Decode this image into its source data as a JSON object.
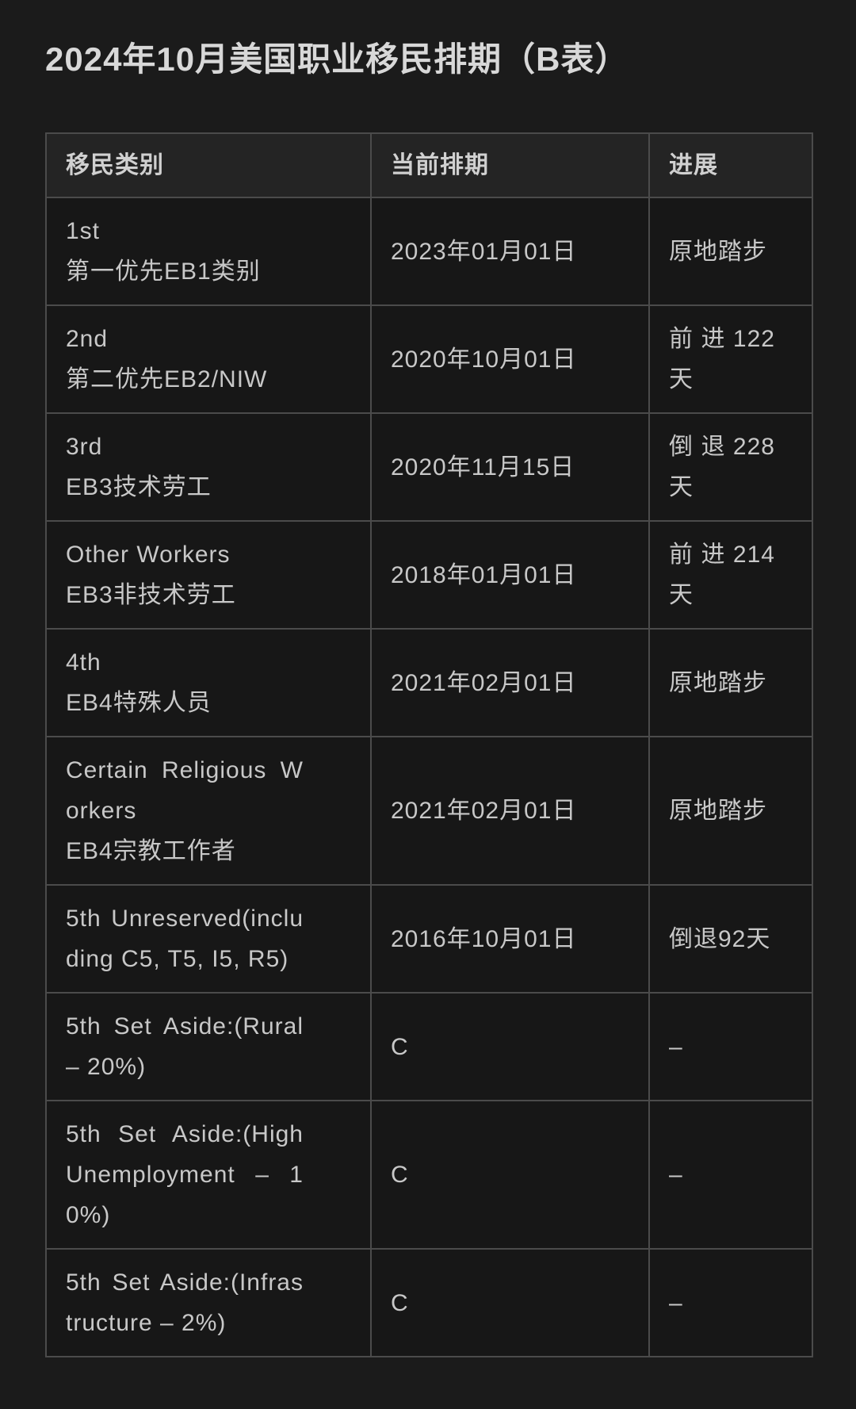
{
  "page": {
    "title": "2024年10月美国职业移民排期（B表）",
    "colors": {
      "page_background": "#1b1b1b",
      "cell_background": "#171717",
      "header_background": "#242424",
      "border": "#4b4b4b",
      "body_text": "#c8c8c8",
      "title_text": "#d8d8d8"
    }
  },
  "table": {
    "columns": [
      "移民类别",
      "当前排期",
      "进展"
    ],
    "rows": [
      {
        "category_en": "1st",
        "category_zh": "第一优先EB1类别",
        "current_date": "2023年01月01日",
        "progress": "原地踏步"
      },
      {
        "category_en": "2nd",
        "category_zh": "第二优先EB2/NIW",
        "current_date": "2020年10月01日",
        "progress": "前进122天"
      },
      {
        "category_en": "3rd",
        "category_zh": "EB3技术劳工",
        "current_date": "2020年11月15日",
        "progress": "倒退228天"
      },
      {
        "category_en": "Other Workers",
        "category_zh": "EB3非技术劳工",
        "current_date": "2018年01月01日",
        "progress": "前进214天"
      },
      {
        "category_en": "4th",
        "category_zh": "EB4特殊人员",
        "current_date": "2021年02月01日",
        "progress": "原地踏步"
      },
      {
        "category_en": "Certain Religious Workers",
        "category_zh": "EB4宗教工作者",
        "current_date": "2021年02月01日",
        "progress": "原地踏步"
      },
      {
        "category_en": "5th Unreserved(including C5, T5, I5, R5)",
        "category_zh": "",
        "current_date": "2016年10月01日",
        "progress": "倒退92天"
      },
      {
        "category_en": "5th Set Aside:(Rural – 20%)",
        "category_zh": "",
        "current_date": "C",
        "progress": "–"
      },
      {
        "category_en": "5th Set Aside:(High Unemployment – 10%)",
        "category_zh": "",
        "current_date": "C",
        "progress": "–"
      },
      {
        "category_en": "5th Set Aside:(Infrastructure – 2%)",
        "category_zh": "",
        "current_date": "C",
        "progress": "–"
      }
    ]
  }
}
